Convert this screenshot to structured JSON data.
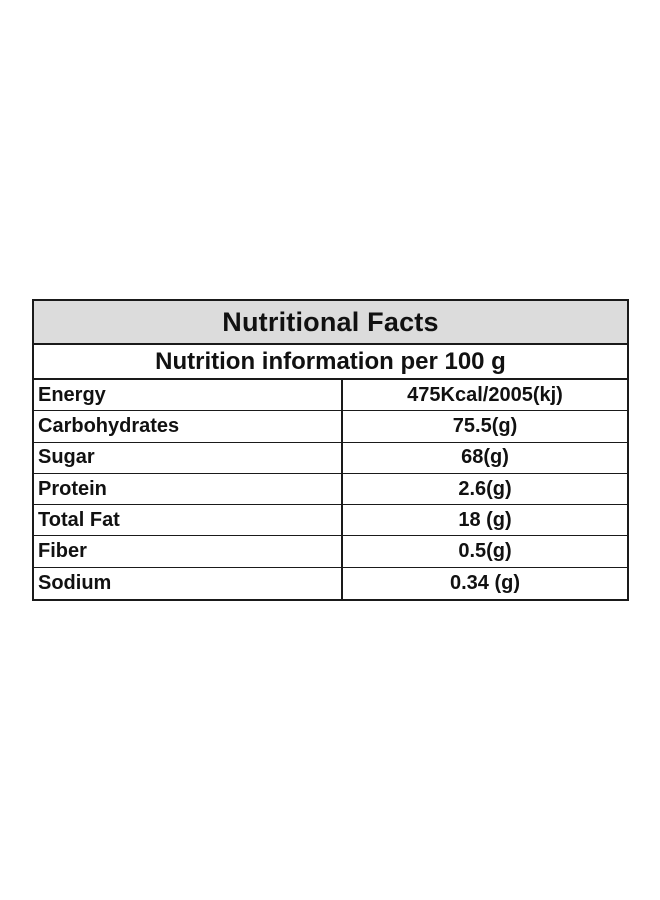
{
  "table": {
    "title": "Nutritional Facts",
    "subtitle": "Nutrition information per 100 g",
    "rows": [
      {
        "label": "Energy",
        "value": "475Kcal/2005(kj)"
      },
      {
        "label": "Carbohydrates",
        "value": "75.5(g)"
      },
      {
        "label": "Sugar",
        "value": "68(g)"
      },
      {
        "label": "Protein",
        "value": "2.6(g)"
      },
      {
        "label": "Total Fat",
        "value": "18 (g)"
      },
      {
        "label": "Fiber",
        "value": "0.5(g)"
      },
      {
        "label": "Sodium",
        "value": "0.34 (g)"
      }
    ]
  },
  "colors": {
    "header_background": "#dcdcdc",
    "border": "#1a1a1a",
    "text": "#111111"
  }
}
